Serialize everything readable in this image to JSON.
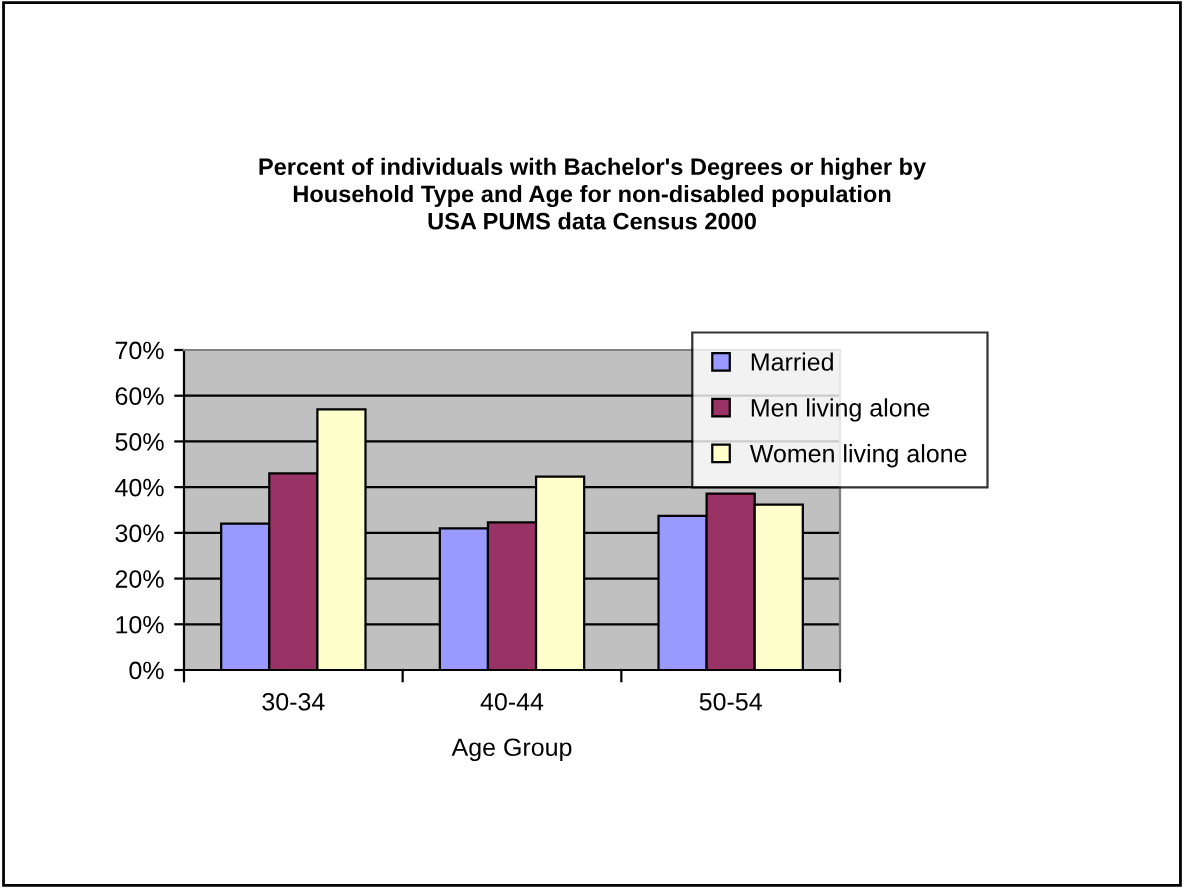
{
  "chart_data": {
    "type": "bar",
    "title": "Percent of individuals with Bachelor's Degrees or higher by\nHousehold Type and Age for non-disabled population\nUSA PUMS data Census 2000",
    "xlabel": "Age Group",
    "categories": [
      "30-34",
      "40-44",
      "50-54"
    ],
    "series": [
      {
        "name": "Married",
        "color": "#9999ff",
        "values": [
          32,
          31,
          33.7
        ]
      },
      {
        "name": "Men living alone",
        "color": "#993366",
        "values": [
          43,
          32.3,
          38.6
        ]
      },
      {
        "name": "Women living alone",
        "color": "#ffffcc",
        "values": [
          57,
          42.3,
          36.2
        ]
      }
    ],
    "ylim": [
      0,
      70
    ],
    "yticks": [
      {
        "value": 0,
        "label": "0%"
      },
      {
        "value": 10,
        "label": "10%"
      },
      {
        "value": 20,
        "label": "20%"
      },
      {
        "value": 30,
        "label": "30%"
      },
      {
        "value": 40,
        "label": "40%"
      },
      {
        "value": 50,
        "label": "50%"
      },
      {
        "value": 60,
        "label": "60%"
      },
      {
        "value": 70,
        "label": "70%"
      }
    ],
    "grid": "y",
    "legend": "top right"
  }
}
